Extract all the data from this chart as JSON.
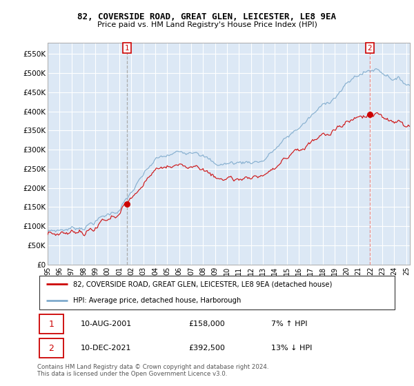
{
  "title": "82, COVERSIDE ROAD, GREAT GLEN, LEICESTER, LE8 9EA",
  "subtitle": "Price paid vs. HM Land Registry's House Price Index (HPI)",
  "legend_line1": "82, COVERSIDE ROAD, GREAT GLEN, LEICESTER, LE8 9EA (detached house)",
  "legend_line2": "HPI: Average price, detached house, Harborough",
  "annotation1_date": "10-AUG-2001",
  "annotation1_price": "£158,000",
  "annotation1_hpi": "7% ↑ HPI",
  "annotation2_date": "10-DEC-2021",
  "annotation2_price": "£392,500",
  "annotation2_hpi": "13% ↓ HPI",
  "footnote": "Contains HM Land Registry data © Crown copyright and database right 2024.\nThis data is licensed under the Open Government Licence v3.0.",
  "red_color": "#cc0000",
  "blue_color": "#7eaacc",
  "vline1_color": "#aaaaaa",
  "vline2_color": "#dd8888",
  "plot_bg_color": "#dce8f5",
  "ylim_min": 0,
  "ylim_max": 580000,
  "yticks": [
    0,
    50000,
    100000,
    150000,
    200000,
    250000,
    300000,
    350000,
    400000,
    450000,
    500000,
    550000
  ],
  "ytick_labels": [
    "£0",
    "£50K",
    "£100K",
    "£150K",
    "£200K",
    "£250K",
    "£300K",
    "£350K",
    "£400K",
    "£450K",
    "£500K",
    "£550K"
  ],
  "sale1_year": 2001.62,
  "sale1_price": 158000,
  "sale2_year": 2021.95,
  "sale2_price": 392500
}
